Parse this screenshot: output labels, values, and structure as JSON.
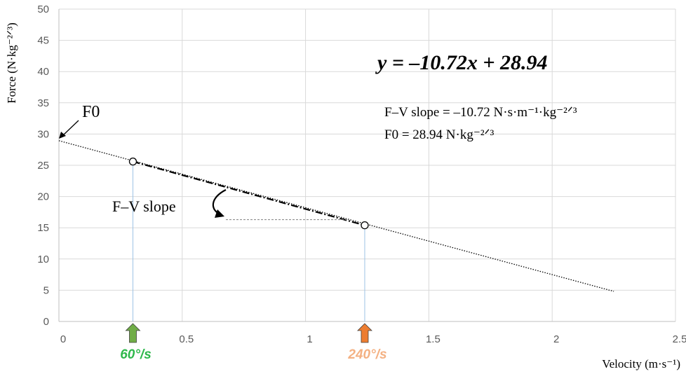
{
  "chart_data": {
    "type": "line",
    "title": "",
    "xlabel": "Velocity (m·s⁻¹)",
    "ylabel": "Force (N·kg⁻²ᐟ³)",
    "xlim": [
      0,
      2.5
    ],
    "ylim": [
      0,
      50
    ],
    "x_ticks": [
      "0",
      "0.5",
      "1",
      "1.5",
      "2",
      "2.5"
    ],
    "y_ticks": [
      "0",
      "5",
      "10",
      "15",
      "20",
      "25",
      "30",
      "35",
      "40",
      "45",
      "50"
    ],
    "x_tick_values": [
      0,
      0.5,
      1,
      1.5,
      2,
      2.5
    ],
    "y_tick_values": [
      0,
      5,
      10,
      15,
      20,
      25,
      30,
      35,
      40,
      45,
      50
    ],
    "grid": true,
    "regression": {
      "slope": -10.72,
      "intercept": 28.94,
      "x_start": 0,
      "x_end": 2.25
    },
    "points": [
      {
        "x": 0.3,
        "y": 25.6
      },
      {
        "x": 1.24,
        "y": 15.4
      }
    ],
    "equation": "y = –10.72x + 28.94",
    "annotations": {
      "f0_label": "F0",
      "slope_label": "F–V slope",
      "slope_text": "F–V slope = –10.72 N·s·m⁻¹·kg⁻²ᐟ³",
      "f0_text": "F0 = 28.94 N·kg⁻²ᐟ³"
    },
    "markers": [
      {
        "x": 0.3,
        "label": "60°/s",
        "arrow_color": "#70ad47",
        "label_color": "#2eb84b"
      },
      {
        "x": 1.24,
        "label": "240°/s",
        "arrow_color": "#ed7d31",
        "label_color": "#f4b183"
      }
    ],
    "slope_guide_y": 16.3
  }
}
